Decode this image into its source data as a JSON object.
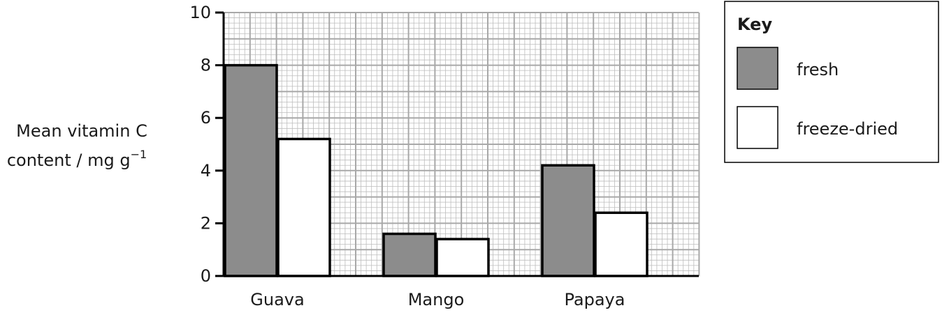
{
  "chart_data": {
    "type": "bar",
    "categories": [
      "Guava",
      "Mango",
      "Papaya"
    ],
    "series": [
      {
        "name": "fresh",
        "values": [
          8.0,
          1.6,
          4.2
        ]
      },
      {
        "name": "freeze-dried",
        "values": [
          5.2,
          1.4,
          2.4
        ]
      }
    ],
    "ylabel_line1": "Mean vitamin C",
    "ylabel_line2": "content / mg g",
    "ylabel_superscript": "−1",
    "ylim": [
      0,
      10
    ],
    "yticks": [
      "0",
      "2",
      "4",
      "6",
      "8",
      "10"
    ],
    "grid": true,
    "legend": {
      "title": "Key",
      "placement": "top-right"
    },
    "colors": {
      "fresh": "#8c8c8c",
      "freeze_dried": "#ffffff",
      "grid": "#bdbdbd",
      "axis": "#000000"
    }
  }
}
